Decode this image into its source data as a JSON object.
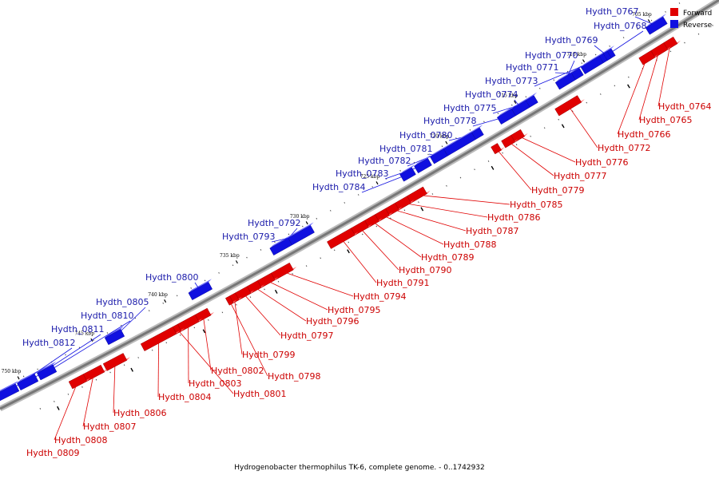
{
  "caption": "Hydrogenobacter thermophilus TK-6, complete genome. - 0..1742932",
  "legend": [
    {
      "label": "Forward",
      "color": "#e00000"
    },
    {
      "label": "Reverse",
      "color": "#1010e0"
    }
  ],
  "colors": {
    "forward": "#e00000",
    "reverse": "#1010e0",
    "forward_label": "#cc0000",
    "reverse_label": "#1a1aaa",
    "backbone": "#888888"
  },
  "ticks": [
    "705 kbp",
    "710 kbp",
    "715 kbp",
    "720 kbp",
    "725 kbp",
    "730 kbp",
    "735 kbp",
    "740 kbp",
    "745 kbp",
    "750 kbp"
  ],
  "reverse_genes": [
    "Hydth_0767",
    "Hydth_0768",
    "Hydth_0769",
    "Hydth_0770",
    "Hydth_0771",
    "Hydth_0773",
    "Hydth_0774",
    "Hydth_0775",
    "Hydth_0778",
    "Hydth_0780",
    "Hydth_0781",
    "Hydth_0782",
    "Hydth_0783",
    "Hydth_0784",
    "Hydth_0792",
    "Hydth_0793",
    "Hydth_0800",
    "Hydth_0805",
    "Hydth_0810",
    "Hydth_0811",
    "Hydth_0812"
  ],
  "forward_genes": [
    "Hydth_0764",
    "Hydth_0765",
    "Hydth_0766",
    "Hydth_0772",
    "Hydth_0776",
    "Hydth_0777",
    "Hydth_0779",
    "Hydth_0785",
    "Hydth_0786",
    "Hydth_0787",
    "Hydth_0788",
    "Hydth_0789",
    "Hydth_0790",
    "Hydth_0791",
    "Hydth_0794",
    "Hydth_0795",
    "Hydth_0796",
    "Hydth_0797",
    "Hydth_0799",
    "Hydth_0798",
    "Hydth_0802",
    "Hydth_0803",
    "Hydth_0801",
    "Hydth_0804",
    "Hydth_0806",
    "Hydth_0807",
    "Hydth_0808",
    "Hydth_0809"
  ]
}
